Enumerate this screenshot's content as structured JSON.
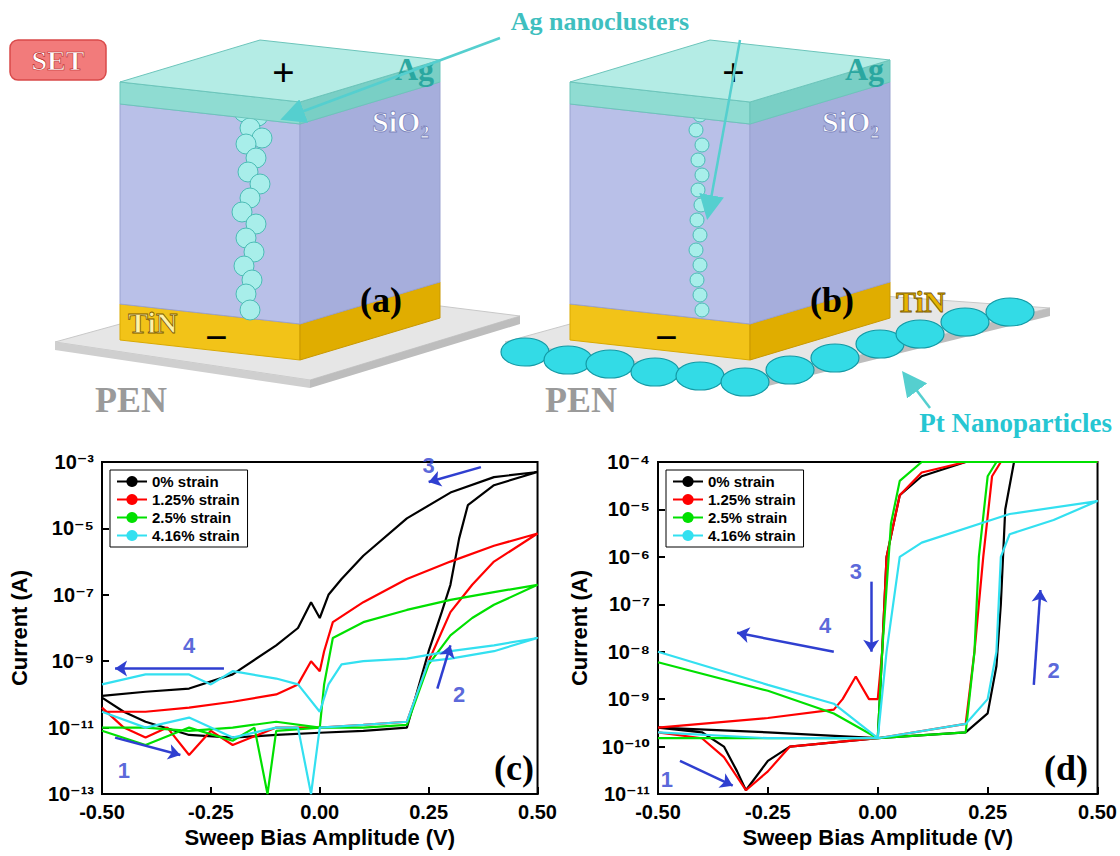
{
  "badge": "SET",
  "callout": "Ag nanoclusters",
  "diagrams": [
    {
      "panel": "(a)",
      "top_electrode": "Ag",
      "top_sign": "+",
      "insulator": "SiO₂",
      "bottom_electrode": "TiN",
      "bottom_sign": "−",
      "substrate": "PEN"
    },
    {
      "panel": "(b)",
      "top_electrode": "Ag",
      "top_sign": "+",
      "insulator": "SiO₂",
      "bottom_electrode": "TiN",
      "bottom_sign": "−",
      "substrate": "PEN",
      "nanoparticles": "Pt Nanoparticles"
    }
  ],
  "chart_data": [
    {
      "type": "line",
      "panel": "(c)",
      "x_label": "Sweep Bias Amplitude (V)",
      "y_label": "Current (A)",
      "log": "y",
      "grid": false,
      "legend": "upper left",
      "xlim": [
        -0.5,
        0.5
      ],
      "xticks": [
        {
          "value": -0.5,
          "label": "-0.50"
        },
        {
          "value": -0.25,
          "label": "-0.25"
        },
        {
          "value": 0,
          "label": "0.00"
        },
        {
          "value": 0.25,
          "label": "0.25"
        },
        {
          "value": 0.5,
          "label": "0.50"
        }
      ],
      "ylim": [
        1e-13,
        0.001
      ],
      "yticks": [
        {
          "value": 1e-13,
          "label": "10⁻¹³"
        },
        {
          "value": 1e-11,
          "label": "10⁻¹¹"
        },
        {
          "value": 1e-09,
          "label": "10⁻⁹"
        },
        {
          "value": 1e-07,
          "label": "10⁻⁷"
        },
        {
          "value": 1e-05,
          "label": "10⁻⁵"
        },
        {
          "value": 0.001,
          "label": "10⁻³"
        }
      ],
      "series": [
        {
          "name": "0% strain",
          "color": "#000000",
          "x": [
            -0.5,
            -0.45,
            -0.4,
            -0.3,
            -0.2,
            -0.1,
            0,
            0.1,
            0.2,
            0.25,
            0.28,
            0.3,
            0.32,
            0.34,
            0.4,
            0.5,
            0.4,
            0.3,
            0.2,
            0.1,
            0.05,
            0.02,
            0,
            -0.02,
            -0.05,
            -0.1,
            -0.2,
            -0.3,
            -0.4,
            -0.5
          ],
          "values": [
            8e-11,
            3e-11,
            1.5e-11,
            6e-12,
            5e-12,
            6e-12,
            7e-12,
            8e-12,
            1e-11,
            2e-09,
            3e-08,
            2e-07,
            5e-06,
            5e-05,
            0.0002,
            0.0005,
            0.00035,
            0.00012,
            2e-05,
            1.5e-06,
            3e-07,
            1e-07,
            2e-08,
            6e-08,
            1e-08,
            3e-09,
            4e-10,
            1.5e-10,
            1.2e-10,
            9e-11
          ]
        },
        {
          "name": "1.25% strain",
          "color": "#ff0000",
          "x": [
            -0.5,
            -0.45,
            -0.4,
            -0.35,
            -0.3,
            -0.25,
            -0.2,
            -0.1,
            0,
            0.1,
            0.2,
            0.25,
            0.3,
            0.35,
            0.4,
            0.5,
            0.4,
            0.3,
            0.2,
            0.1,
            0.03,
            0.01,
            0,
            -0.02,
            -0.05,
            -0.1,
            -0.2,
            -0.3,
            -0.4,
            -0.5
          ],
          "values": [
            4e-11,
            1e-11,
            5e-12,
            1e-11,
            1.5e-12,
            8e-12,
            3e-12,
            1e-11,
            1e-11,
            1.2e-11,
            1.5e-11,
            1e-09,
            3e-08,
            2e-07,
            1e-06,
            7e-06,
            3e-06,
            1e-06,
            3e-07,
            6e-08,
            1.5e-08,
            2e-09,
            5e-10,
            1e-09,
            2e-10,
            1e-10,
            6e-11,
            4e-11,
            3e-11,
            3e-11
          ]
        },
        {
          "name": "2.5% strain",
          "color": "#00e000",
          "x": [
            -0.5,
            -0.4,
            -0.3,
            -0.2,
            -0.15,
            -0.12,
            -0.1,
            0,
            0.1,
            0.2,
            0.25,
            0.3,
            0.35,
            0.4,
            0.5,
            0.4,
            0.3,
            0.2,
            0.1,
            0.03,
            0.01,
            0,
            -0.1,
            -0.2,
            -0.3,
            -0.4,
            -0.5
          ],
          "values": [
            8e-12,
            3e-12,
            1e-11,
            4e-12,
            1e-11,
            1e-13,
            8e-12,
            1e-11,
            1e-11,
            1.2e-11,
            8e-10,
            6e-09,
            2e-08,
            5e-08,
            2e-07,
            1.2e-07,
            7e-08,
            3.5e-08,
            1.5e-08,
            5e-09,
            2e-10,
            1e-11,
            1.5e-11,
            1e-11,
            8e-12,
            1e-11,
            1e-11
          ]
        },
        {
          "name": "4.16% strain",
          "color": "#33e0f0",
          "x": [
            -0.5,
            -0.4,
            -0.3,
            -0.2,
            -0.1,
            -0.05,
            -0.02,
            0,
            0.1,
            0.2,
            0.25,
            0.3,
            0.4,
            0.5,
            0.4,
            0.3,
            0.2,
            0.1,
            0.05,
            0.02,
            0,
            -0.05,
            -0.1,
            -0.2,
            -0.25,
            -0.3,
            -0.4,
            -0.5
          ],
          "values": [
            3e-11,
            1e-11,
            2e-11,
            5e-12,
            1e-11,
            1e-11,
            1e-13,
            1e-11,
            1.2e-11,
            1.5e-11,
            1e-09,
            1.2e-09,
            2e-09,
            5e-09,
            3e-09,
            2e-09,
            1.2e-09,
            1e-09,
            8e-10,
            2e-10,
            3e-11,
            2e-10,
            3e-10,
            5e-10,
            2e-10,
            4e-10,
            4e-10,
            2e-10
          ]
        }
      ],
      "annotations": [
        {
          "text": "1",
          "x": -0.45,
          "y": 5e-13,
          "arrow": {
            "from": [
              -0.47,
              5e-12
            ],
            "to": [
              -0.32,
              1.5e-12
            ]
          }
        },
        {
          "text": "2",
          "x": 0.32,
          "y": 1e-10,
          "arrow": {
            "from": [
              0.27,
              1.5e-10
            ],
            "to": [
              0.3,
              3e-09
            ]
          }
        },
        {
          "text": "3",
          "x": 0.25,
          "y": 0.0008,
          "arrow": {
            "from": [
              0.37,
              0.0007
            ],
            "to": [
              0.25,
              0.00025
            ]
          }
        },
        {
          "text": "4",
          "x": -0.3,
          "y": 3e-09,
          "arrow": {
            "from": [
              -0.22,
              6e-10
            ],
            "to": [
              -0.47,
              6e-10
            ]
          }
        }
      ]
    },
    {
      "type": "line",
      "panel": "(d)",
      "x_label": "Sweep Bias Amplitude (V)",
      "y_label": "Current (A)",
      "log": "y",
      "grid": false,
      "legend": "upper left",
      "xlim": [
        -0.5,
        0.5
      ],
      "xticks": [
        {
          "value": -0.5,
          "label": "-0.50"
        },
        {
          "value": -0.25,
          "label": "-0.25"
        },
        {
          "value": 0,
          "label": "0.00"
        },
        {
          "value": 0.25,
          "label": "0.25"
        },
        {
          "value": 0.5,
          "label": "0.50"
        }
      ],
      "ylim": [
        1e-11,
        0.0001
      ],
      "yticks": [
        {
          "value": 1e-11,
          "label": "10⁻¹¹"
        },
        {
          "value": 1e-10,
          "label": "10⁻¹⁰"
        },
        {
          "value": 1e-09,
          "label": "10⁻⁹"
        },
        {
          "value": 1e-08,
          "label": "10⁻⁸"
        },
        {
          "value": 1e-07,
          "label": "10⁻⁷"
        },
        {
          "value": 1e-06,
          "label": "10⁻⁶"
        },
        {
          "value": 1e-05,
          "label": "10⁻⁵"
        },
        {
          "value": 0.0001,
          "label": "10⁻⁴"
        }
      ],
      "series": [
        {
          "name": "0% strain",
          "color": "#000000",
          "x": [
            -0.5,
            -0.4,
            -0.35,
            -0.32,
            -0.3,
            -0.25,
            -0.2,
            0,
            0.2,
            0.25,
            0.27,
            0.28,
            0.29,
            0.31,
            0.5,
            0.2,
            0.1,
            0.05,
            0.02,
            0.01,
            0,
            -0.25,
            -0.5
          ],
          "values": [
            2.5e-10,
            2e-10,
            1e-10,
            3e-11,
            1.2e-11,
            5e-11,
            1e-10,
            1.5e-10,
            2e-10,
            5e-10,
            5e-09,
            1e-07,
            1e-05,
            0.0001,
            0.0001,
            0.0001,
            5e-05,
            2e-05,
            1e-06,
            1e-08,
            1.5e-10,
            2e-10,
            2.5e-10
          ]
        },
        {
          "name": "1.25% strain",
          "color": "#ff0000",
          "x": [
            -0.5,
            -0.4,
            -0.35,
            -0.3,
            -0.25,
            -0.2,
            0,
            0.2,
            0.22,
            0.24,
            0.26,
            0.28,
            0.5,
            0.2,
            0.1,
            0.05,
            0.02,
            0.01,
            0,
            -0.02,
            -0.05,
            -0.08,
            -0.1,
            -0.25,
            -0.5
          ],
          "values": [
            2e-10,
            1.5e-10,
            6e-11,
            1.2e-11,
            3e-11,
            1e-10,
            1.5e-10,
            3e-10,
            1e-08,
            1e-06,
            5e-05,
            0.0001,
            0.0001,
            0.0001,
            6e-05,
            2e-05,
            1e-06,
            1e-08,
            1e-09,
            1e-09,
            3e-09,
            1e-09,
            6e-10,
            4e-10,
            2.5e-10
          ]
        },
        {
          "name": "2.5% strain",
          "color": "#00e000",
          "x": [
            -0.5,
            -0.25,
            0,
            0.2,
            0.22,
            0.23,
            0.25,
            0.27,
            0.5,
            0.1,
            0.05,
            0.03,
            0.01,
            0,
            -0.1,
            -0.25,
            -0.5
          ],
          "values": [
            1.5e-10,
            1.5e-10,
            1.5e-10,
            2e-10,
            1e-08,
            1e-06,
            5e-05,
            0.0001,
            0.0001,
            0.0001,
            4e-05,
            5e-06,
            1e-08,
            1.5e-10,
            5e-10,
            1.5e-09,
            6e-09
          ]
        },
        {
          "name": "4.16% strain",
          "color": "#33e0f0",
          "x": [
            -0.5,
            -0.25,
            0,
            0.2,
            0.25,
            0.27,
            0.28,
            0.3,
            0.4,
            0.5,
            0.3,
            0.1,
            0.05,
            0.02,
            0,
            -0.1,
            -0.25,
            -0.5
          ],
          "values": [
            2e-10,
            1.5e-10,
            1.5e-10,
            3e-10,
            1e-09,
            1e-08,
            1e-06,
            3e-06,
            6e-06,
            1.5e-05,
            8e-06,
            2e-06,
            1e-06,
            1e-08,
            1.5e-10,
            8e-10,
            2e-09,
            1e-08
          ]
        }
      ],
      "annotations": [
        {
          "text": "1",
          "x": -0.48,
          "y": 2e-11,
          "arrow": {
            "from": [
              -0.45,
              5e-11
            ],
            "to": [
              -0.33,
              1.5e-11
            ]
          }
        },
        {
          "text": "2",
          "x": 0.4,
          "y": 4e-09,
          "arrow": {
            "from": [
              0.355,
              2e-09
            ],
            "to": [
              0.37,
              2e-07
            ]
          }
        },
        {
          "text": "3",
          "x": -0.05,
          "y": 5e-07,
          "arrow": {
            "from": [
              -0.015,
              3e-07
            ],
            "to": [
              -0.015,
              1e-08
            ]
          }
        },
        {
          "text": "4",
          "x": -0.12,
          "y": 3.5e-08,
          "arrow": {
            "from": [
              -0.1,
              1e-08
            ],
            "to": [
              -0.32,
              2.5e-08
            ]
          }
        }
      ]
    }
  ]
}
